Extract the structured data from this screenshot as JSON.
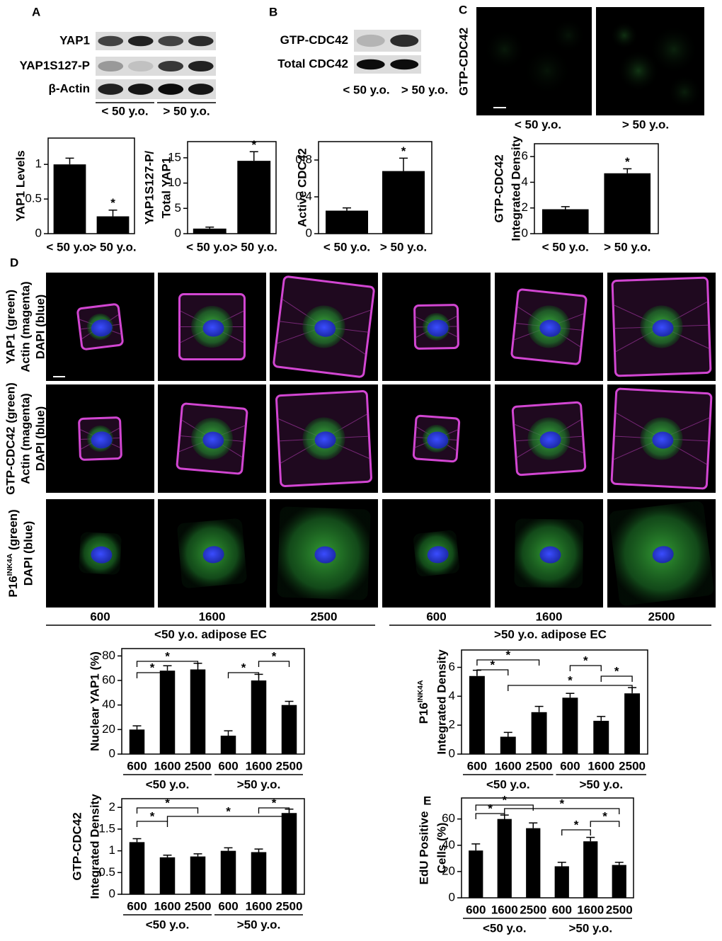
{
  "panel_labels": [
    "A",
    "B",
    "C",
    "D",
    "E"
  ],
  "blots": [
    {
      "rows": [
        "YAP1",
        "YAP1S127-P",
        "β-Actin"
      ],
      "groups": [
        "< 50 y.o.",
        "> 50 y.o."
      ]
    },
    {
      "rows": [
        "GTP-CDC42",
        "Total CDC42"
      ],
      "groups": [
        "< 50 y.o.",
        "> 50 y.o."
      ]
    }
  ],
  "micrographs_c": {
    "label": "GTP-CDC42",
    "groups": [
      "< 50 y.o.",
      "> 50 y.o."
    ]
  },
  "micrographs_d": {
    "rows": [
      [
        "YAP1 (green)",
        "Actin (magenta)",
        "DAPI (blue)"
      ],
      [
        "GTP-CDC42 (green)",
        "Actin (magenta)",
        "DAPI (blue)"
      ],
      [
        {
          "text": "P16",
          "sup": "INK4A",
          "rest": " (green)"
        },
        "DAPI (blue)"
      ]
    ],
    "columns": [
      "600",
      "1600",
      "2500",
      "600",
      "1600",
      "2500"
    ],
    "groups": [
      "<50 y.o. adipose EC",
      ">50 y.o. adipose EC"
    ]
  },
  "chart_data": [
    {
      "type": "bar",
      "ylabel": [
        "YAP1 Levels"
      ],
      "categories": [
        "< 50 y.o.",
        "> 50 y.o."
      ],
      "values": [
        1.0,
        0.25
      ],
      "errors": [
        0.09,
        0.09
      ],
      "color": "#000000",
      "ylim": [
        0,
        1.38
      ],
      "yticks": [
        0,
        0.5,
        1
      ],
      "significance": [
        null,
        "*"
      ]
    },
    {
      "type": "bar",
      "ylabel": [
        "YAP1S127-P/",
        "Total YAP1"
      ],
      "categories": [
        "< 50 y.o.",
        "> 50 y.o."
      ],
      "values": [
        1.0,
        14.4
      ],
      "errors": [
        0.3,
        1.8
      ],
      "color": "#000000",
      "ylim": [
        0,
        18.2
      ],
      "yticks": [
        0,
        5,
        10,
        15
      ],
      "significance": [
        null,
        "*"
      ]
    },
    {
      "type": "bar",
      "ylabel": [
        "Active CDC42"
      ],
      "categories": [
        "< 50 y.o.",
        "> 50 y.o."
      ],
      "values": [
        0.25,
        0.68
      ],
      "errors": [
        0.03,
        0.14
      ],
      "color": "#000000",
      "ylim": [
        0,
        1.0
      ],
      "yticks": [
        0,
        0.4,
        0.8
      ],
      "significance": [
        null,
        "*"
      ]
    },
    {
      "type": "bar",
      "ylabel": [
        "GTP-CDC42",
        "Integrated Density"
      ],
      "categories": [
        "< 50 y.o.",
        "> 50 y.o."
      ],
      "values": [
        1.9,
        4.7
      ],
      "errors": [
        0.2,
        0.35
      ],
      "color": "#000000",
      "ylim": [
        0,
        7
      ],
      "yticks": [
        0,
        2,
        4,
        6
      ],
      "significance": [
        null,
        "*"
      ]
    },
    {
      "type": "bar",
      "ylabel": [
        "Nuclear YAP1 (%)"
      ],
      "categories": [
        "600",
        "1600",
        "2500",
        "600",
        "1600",
        "2500"
      ],
      "groups": [
        "<50 y.o.",
        ">50 y.o."
      ],
      "values": [
        20,
        68,
        69,
        15,
        60,
        40
      ],
      "errors": [
        3,
        4,
        5,
        4,
        5,
        3
      ],
      "color": "#000000",
      "ylim": [
        0,
        86
      ],
      "yticks": [
        0,
        20,
        40,
        60,
        80
      ],
      "brackets": [
        {
          "from": 0,
          "to": 1,
          "text": "*"
        },
        {
          "from": 0,
          "to": 2,
          "text": "*"
        },
        {
          "from": 3,
          "to": 4,
          "text": "*"
        },
        {
          "from": 4,
          "to": 5,
          "text": "*"
        }
      ]
    },
    {
      "type": "bar",
      "ylabel": [
        {
          "text": "P16",
          "sup": "INK4A"
        },
        "Integrated Density"
      ],
      "categories": [
        "600",
        "1600",
        "2500",
        "600",
        "1600",
        "2500"
      ],
      "groups": [
        "<50 y.o.",
        ">50 y.o."
      ],
      "values": [
        5.4,
        1.2,
        2.9,
        3.9,
        2.3,
        4.2
      ],
      "errors": [
        0.4,
        0.3,
        0.4,
        0.3,
        0.3,
        0.4
      ],
      "color": "#000000",
      "ylim": [
        0,
        7.2
      ],
      "yticks": [
        0,
        2,
        4,
        6
      ],
      "brackets": [
        {
          "from": 0,
          "to": 1,
          "text": "*"
        },
        {
          "from": 0,
          "to": 2,
          "text": "*"
        },
        {
          "from": 1,
          "to": 5,
          "text": "*"
        },
        {
          "from": 3,
          "to": 4,
          "text": "*"
        },
        {
          "from": 4,
          "to": 5,
          "text": "*"
        }
      ]
    },
    {
      "type": "bar",
      "ylabel": [
        "GTP-CDC42",
        "Integrated Density"
      ],
      "categories": [
        "600",
        "1600",
        "2500",
        "600",
        "1600",
        "2500"
      ],
      "groups": [
        "<50 y.o.",
        ">50 y.o."
      ],
      "values": [
        1.2,
        0.85,
        0.87,
        1.0,
        0.97,
        1.87
      ],
      "errors": [
        0.08,
        0.05,
        0.06,
        0.07,
        0.07,
        0.09
      ],
      "color": "#000000",
      "ylim": [
        0,
        2.2
      ],
      "yticks": [
        0,
        0.5,
        1,
        1.5,
        2
      ],
      "brackets": [
        {
          "from": 0,
          "to": 1,
          "text": "*"
        },
        {
          "from": 0,
          "to": 2,
          "text": "*"
        },
        {
          "from": 1,
          "to": 5,
          "text": "*"
        },
        {
          "from": 4,
          "to": 5,
          "text": "*"
        }
      ]
    },
    {
      "type": "bar",
      "ylabel": [
        "EdU Positive",
        "Cells (%)"
      ],
      "categories": [
        "600",
        "1600",
        "2500",
        "600",
        "1600",
        "2500"
      ],
      "groups": [
        "<50 y.o.",
        ">50 y.o."
      ],
      "values": [
        36,
        60,
        53,
        24,
        43,
        25
      ],
      "errors": [
        5,
        3,
        4,
        3,
        3,
        2
      ],
      "color": "#000000",
      "ylim": [
        0,
        76
      ],
      "yticks": [
        0,
        20,
        40,
        60
      ],
      "brackets": [
        {
          "from": 0,
          "to": 1,
          "text": "*"
        },
        {
          "from": 0,
          "to": 2,
          "text": "*"
        },
        {
          "from": 1,
          "to": 5,
          "text": "*"
        },
        {
          "from": 3,
          "to": 4,
          "text": "*"
        },
        {
          "from": 4,
          "to": 5,
          "text": "*"
        }
      ]
    }
  ]
}
